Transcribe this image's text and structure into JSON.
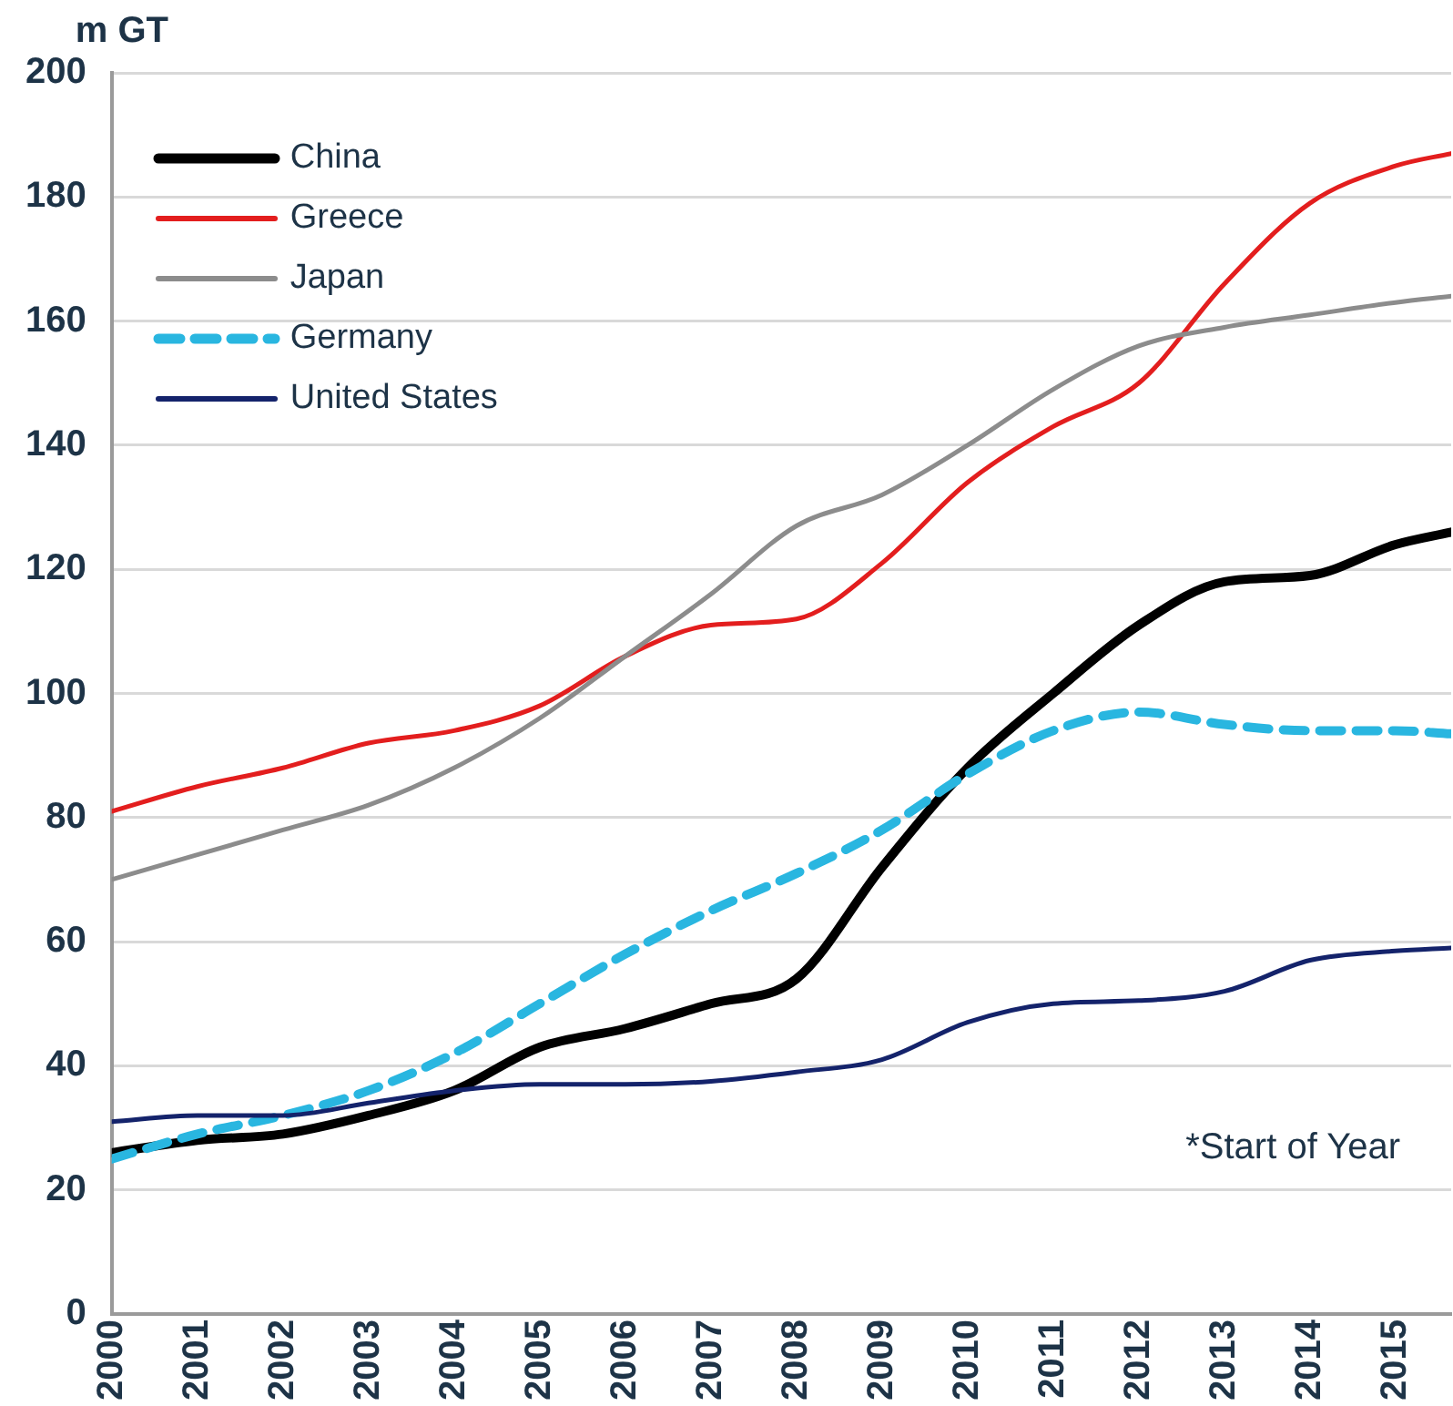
{
  "chart_data": {
    "type": "line",
    "ylabel": "m GT",
    "annotations": [
      "*Start of Year"
    ],
    "x": [
      2000,
      2001,
      2002,
      2003,
      2004,
      2005,
      2006,
      2007,
      2008,
      2009,
      2010,
      2011,
      2012,
      2013,
      2014,
      2015,
      2015.65
    ],
    "xlim": [
      2000,
      2015.65
    ],
    "xticks": [
      2000,
      2001,
      2002,
      2003,
      2004,
      2005,
      2006,
      2007,
      2008,
      2009,
      2010,
      2011,
      2012,
      2013,
      2014,
      2015
    ],
    "ylim": [
      0,
      200
    ],
    "yticks": [
      0,
      20,
      40,
      60,
      80,
      100,
      120,
      140,
      160,
      180,
      200
    ],
    "grid": "y",
    "legend": "top left",
    "marker": "none",
    "series": [
      {
        "name": "China",
        "color": "#000000",
        "line_style": "solid",
        "values": [
          26,
          28,
          29,
          32,
          36,
          43,
          46,
          50,
          54,
          72,
          88,
          100,
          111,
          118,
          119,
          124,
          126
        ]
      },
      {
        "name": "Greece",
        "color": "#e31e1e",
        "line_style": "solid",
        "values": [
          81,
          85,
          88,
          92,
          94,
          98,
          106,
          111,
          112,
          121,
          134,
          143,
          150,
          166,
          179,
          185,
          187
        ]
      },
      {
        "name": "Japan",
        "color": "#8c8c8c",
        "line_style": "solid",
        "values": [
          70,
          74,
          78,
          82,
          88,
          96,
          106,
          116,
          127,
          132,
          140,
          149,
          156,
          159,
          161,
          163,
          164
        ]
      },
      {
        "name": "Germany",
        "color": "#29b6e0",
        "line_style": "dashed",
        "values": [
          25,
          29,
          32,
          36,
          42,
          50,
          58,
          65,
          71,
          78,
          87,
          94,
          97,
          95,
          94,
          94,
          93.5
        ]
      },
      {
        "name": "United States",
        "color": "#14236b",
        "line_style": "solid",
        "values": [
          31,
          32,
          32,
          34,
          36,
          37,
          37,
          37.5,
          39,
          41,
          47,
          50,
          50.5,
          52,
          57,
          58.5,
          59
        ]
      }
    ]
  }
}
